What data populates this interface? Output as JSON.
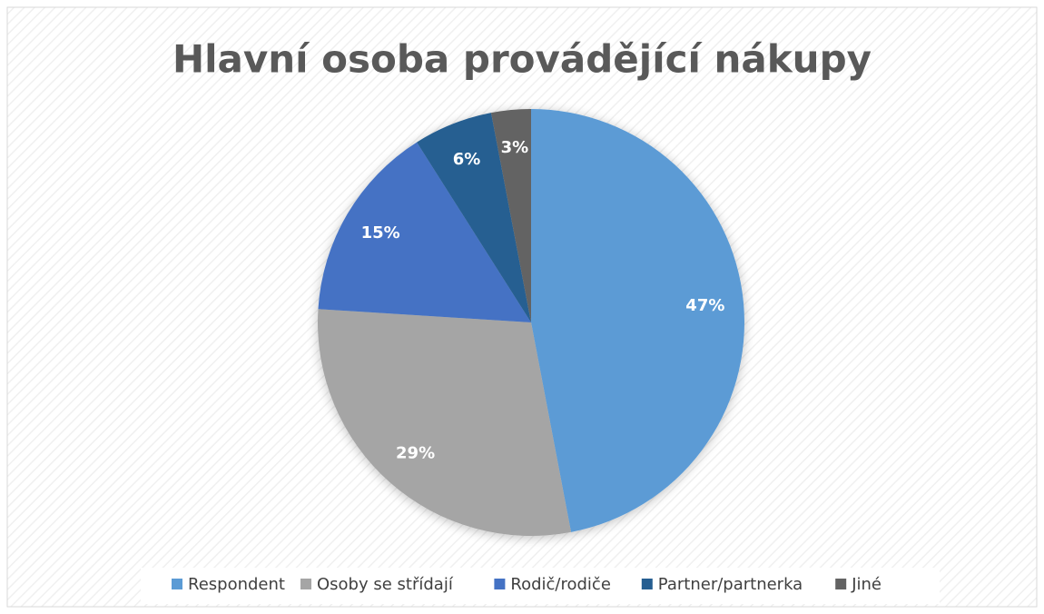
{
  "chart_data": {
    "type": "pie",
    "title": "Hlavní osoba provádějící nákupy",
    "categories": [
      "Respondent",
      "Osoby se střídají",
      "Rodič/rodiče",
      "Partner/partnerka",
      "Jiné"
    ],
    "values": [
      47,
      29,
      15,
      6,
      3
    ],
    "value_labels": [
      "47%",
      "29%",
      "15%",
      "6%",
      "3%"
    ],
    "colors": [
      "#5b9bd5",
      "#a5a5a5",
      "#4472c4",
      "#255e91",
      "#636363"
    ],
    "legend": "bottom"
  }
}
